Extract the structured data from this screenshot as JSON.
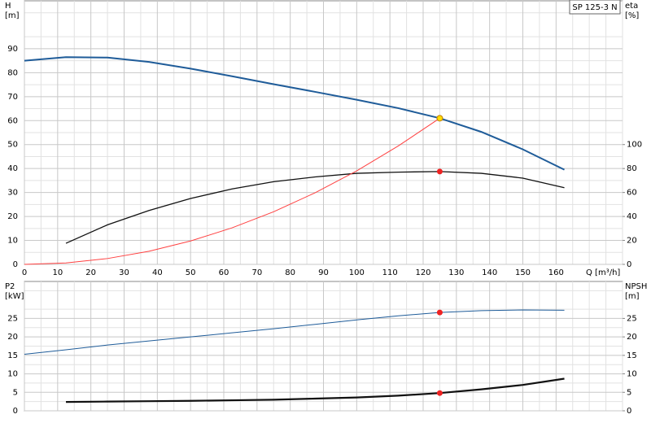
{
  "chart_data": [
    {
      "type": "line",
      "title": "SP 125-3 N",
      "xlabel": "Q [m³/h]",
      "ylabel": [
        "H",
        "[m]"
      ],
      "y2label": [
        "eta",
        "[%]"
      ],
      "xlim": [
        0,
        180
      ],
      "xticks": [
        0,
        10,
        20,
        30,
        40,
        50,
        60,
        70,
        80,
        90,
        100,
        110,
        120,
        130,
        140,
        150,
        160
      ],
      "xtick_labels": true,
      "ylim": [
        0,
        110
      ],
      "yticks": [
        0,
        10,
        20,
        30,
        40,
        50,
        60,
        70,
        80,
        90
      ],
      "y2lim": [
        0,
        220
      ],
      "y2ticks": [
        0,
        20,
        40,
        60,
        80,
        100
      ],
      "grid": true,
      "minor_grid": true,
      "series": [
        {
          "color": "#1f5c99",
          "width": 2,
          "x": [
            0,
            12.5,
            25,
            37.5,
            50,
            62.5,
            75,
            87.5,
            100,
            112.5,
            125,
            137.5,
            150,
            162.5
          ],
          "values": [
            85,
            86.5,
            86.3,
            84.5,
            81.7,
            78.5,
            75.2,
            72,
            68.7,
            65.2,
            61,
            55.3,
            48,
            39.5
          ]
        },
        {
          "color": "#111111",
          "width": 1.3,
          "axis": "y2",
          "x": [
            12.5,
            25,
            37.5,
            50,
            62.5,
            75,
            87.5,
            100,
            112.5,
            125,
            137.5,
            150,
            162.5
          ],
          "values": [
            17.6,
            33,
            45,
            55,
            63,
            69,
            73,
            76,
            77,
            77.5,
            76,
            72,
            64
          ]
        },
        {
          "color": "#ff4040",
          "width": 1,
          "x": [
            0,
            12.5,
            25,
            37.5,
            50,
            62.5,
            75,
            87.5,
            100,
            112.5,
            125
          ],
          "values": [
            0,
            0.61,
            2.44,
            5.49,
            9.76,
            15.25,
            21.96,
            29.89,
            39.04,
            49.41,
            61
          ]
        }
      ],
      "points": [
        {
          "x": 125,
          "y": 61,
          "color": "#ffdd00"
        },
        {
          "x": 125,
          "y": 77.5,
          "color": "#ee2222",
          "axis": "y2"
        }
      ]
    },
    {
      "type": "line",
      "ylabel": [
        "P2",
        "[kW]"
      ],
      "y2label": [
        "NPSH",
        "[m]"
      ],
      "xlim": [
        0,
        180
      ],
      "xticks": [
        0,
        10,
        20,
        30,
        40,
        50,
        60,
        70,
        80,
        90,
        100,
        110,
        120,
        130,
        140,
        150,
        160
      ],
      "xtick_labels": false,
      "ylim": [
        0,
        35
      ],
      "yticks": [
        0,
        5,
        10,
        15,
        20,
        25
      ],
      "y2lim": [
        0,
        35
      ],
      "y2ticks": [
        0,
        5,
        10,
        15,
        20,
        25
      ],
      "grid": true,
      "minor_grid": true,
      "series": [
        {
          "color": "#1f5c99",
          "width": 1,
          "x": [
            0,
            12.5,
            25,
            37.5,
            50,
            62.5,
            75,
            87.5,
            100,
            112.5,
            125,
            137.5,
            150,
            162.5
          ],
          "values": [
            15.3,
            16.5,
            17.8,
            18.9,
            20,
            21.1,
            22.2,
            23.4,
            24.6,
            25.7,
            26.6,
            27.1,
            27.3,
            27.2
          ]
        },
        {
          "color": "#111111",
          "width": 2.2,
          "axis": "y2",
          "x": [
            12.5,
            25,
            37.5,
            50,
            62.5,
            75,
            87.5,
            100,
            112.5,
            125,
            137.5,
            150,
            162.5
          ],
          "values": [
            2.4,
            2.5,
            2.6,
            2.7,
            2.85,
            3,
            3.3,
            3.6,
            4.1,
            4.8,
            5.8,
            7,
            8.7
          ]
        }
      ],
      "points": [
        {
          "x": 125,
          "y": 26.6,
          "color": "#ee2222"
        },
        {
          "x": 125,
          "y": 4.8,
          "color": "#ee2222",
          "axis": "y2"
        }
      ]
    }
  ]
}
